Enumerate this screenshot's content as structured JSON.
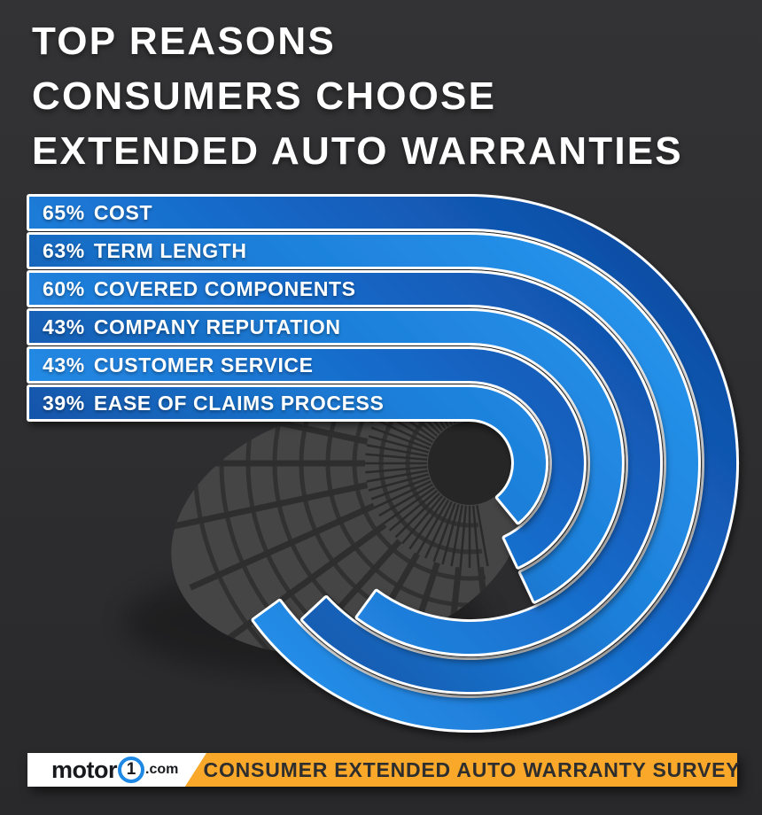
{
  "title": {
    "lines": [
      "TOP REASONS",
      "CONSUMERS CHOOSE",
      "EXTENDED AUTO WARRANTIES"
    ]
  },
  "chart_data": {
    "type": "bar",
    "variant": "radial-wrapped-bars",
    "title": "Top reasons consumers choose extended auto warranties",
    "categories": [
      "COST",
      "TERM LENGTH",
      "COVERED COMPONENTS",
      "COMPANY REPUTATION",
      "CUSTOMER SERVICE",
      "EASE OF CLAIMS PROCESS"
    ],
    "values": [
      65,
      63,
      60,
      43,
      43,
      39
    ],
    "unit": "%",
    "value_range": [
      0,
      100
    ],
    "sweep_degrees_per_percent": 3.6,
    "legend": false
  },
  "bars": [
    {
      "pct": "65%",
      "label": "COST"
    },
    {
      "pct": "63%",
      "label": "TERM LENGTH"
    },
    {
      "pct": "60%",
      "label": "COVERED COMPONENTS"
    },
    {
      "pct": "43%",
      "label": "COMPANY REPUTATION"
    },
    {
      "pct": "43%",
      "label": "CUSTOMER SERVICE"
    },
    {
      "pct": "39%",
      "label": "EASE OF CLAIMS PROCESS"
    }
  ],
  "footer": {
    "logo": {
      "prefix": "motor",
      "digit": "1",
      "suffix": ".com"
    },
    "banner": "CONSUMER EXTENDED AUTO WARRANTY SURVEY"
  },
  "colors": {
    "background": "#2e2e2e",
    "ribbon_dark": "#0b3e90",
    "ribbon_mid": "#1566c5",
    "ribbon_mid2": "#1d7fd9",
    "ribbon_bright": "#2da1f8",
    "ribbon_border": "#ffffff",
    "banner_yellow": "#f9a82a",
    "logo_blue": "#1e88e5",
    "tire_gray": "#454545",
    "tire_groove": "#2e2e2e",
    "hub_dark": "#262626",
    "text_white": "#ffffff",
    "text_dark": "#2e2e2e"
  }
}
